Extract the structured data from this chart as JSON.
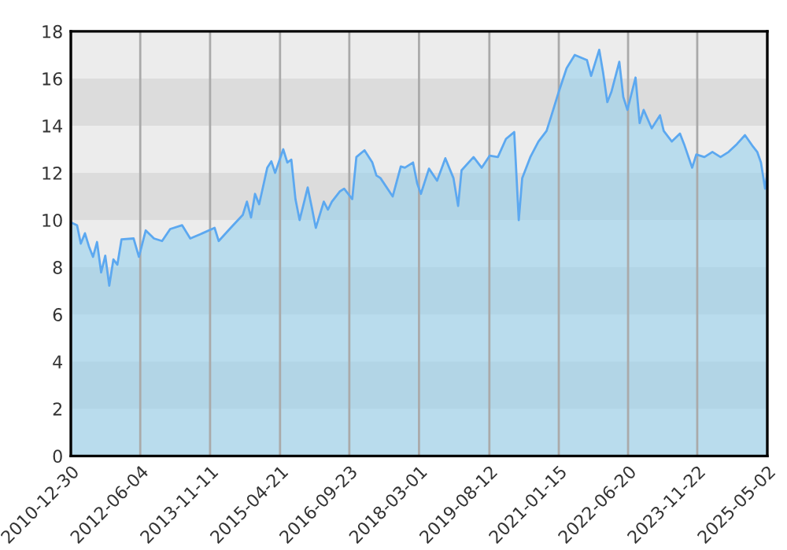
{
  "chart_data": {
    "type": "area",
    "x": [
      "2010-12-30",
      "2011-02-15",
      "2011-03-15",
      "2011-04-15",
      "2011-05-15",
      "2011-06-15",
      "2011-07-15",
      "2011-08-15",
      "2011-09-15",
      "2011-10-15",
      "2011-11-15",
      "2011-12-15",
      "2012-01-15",
      "2012-04-15",
      "2012-05-25",
      "2012-07-15",
      "2012-09-15",
      "2012-11-15",
      "2013-01-15",
      "2013-04-15",
      "2013-06-15",
      "2013-09-15",
      "2013-12-15",
      "2014-01-15",
      "2014-04-15",
      "2014-07-15",
      "2014-08-15",
      "2014-09-15",
      "2014-10-15",
      "2014-11-15",
      "2015-01-15",
      "2015-02-15",
      "2015-03-15",
      "2015-05-15",
      "2015-06-15",
      "2015-07-15",
      "2015-08-15",
      "2015-09-15",
      "2015-10-15",
      "2015-11-15",
      "2015-12-15",
      "2016-01-15",
      "2016-03-15",
      "2016-04-15",
      "2016-05-15",
      "2016-07-15",
      "2016-08-15",
      "2016-10-15",
      "2016-11-15",
      "2017-01-15",
      "2017-03-15",
      "2017-04-15",
      "2017-05-15",
      "2017-08-15",
      "2017-10-15",
      "2017-11-15",
      "2018-01-15",
      "2018-02-15",
      "2018-03-15",
      "2018-05-15",
      "2018-07-15",
      "2018-09-15",
      "2018-11-15",
      "2018-12-20",
      "2019-01-15",
      "2019-04-15",
      "2019-06-15",
      "2019-08-15",
      "2019-10-15",
      "2019-12-15",
      "2020-02-15",
      "2020-03-20",
      "2020-04-15",
      "2020-06-15",
      "2020-08-15",
      "2020-10-15",
      "2020-11-15",
      "2021-01-15",
      "2021-03-15",
      "2021-05-15",
      "2021-08-15",
      "2021-09-15",
      "2021-11-15",
      "2021-12-15",
      "2022-01-15",
      "2022-02-15",
      "2022-04-15",
      "2022-05-15",
      "2022-06-15",
      "2022-08-15",
      "2022-09-15",
      "2022-10-15",
      "2022-12-15",
      "2023-02-15",
      "2023-03-15",
      "2023-05-15",
      "2023-07-15",
      "2023-08-15",
      "2023-10-15",
      "2023-11-15",
      "2024-01-15",
      "2024-03-15",
      "2024-05-15",
      "2024-07-15",
      "2024-09-15",
      "2024-11-15",
      "2025-01-15",
      "2025-02-15",
      "2025-03-15",
      "2025-04-15",
      "2025-05-02"
    ],
    "series": [
      {
        "color": "#5ca8f0",
        "values": [
          9.9,
          9.78,
          9.0,
          9.44,
          8.89,
          8.44,
          9.07,
          7.78,
          8.49,
          7.22,
          8.33,
          8.11,
          9.18,
          9.22,
          8.44,
          9.56,
          9.22,
          9.11,
          9.62,
          9.78,
          9.22,
          9.44,
          9.67,
          9.11,
          9.67,
          10.22,
          10.78,
          10.11,
          11.11,
          10.67,
          12.22,
          12.49,
          12.0,
          13.0,
          12.44,
          12.56,
          10.89,
          10.0,
          10.67,
          11.38,
          10.56,
          9.67,
          10.78,
          10.44,
          10.78,
          11.22,
          11.33,
          10.89,
          12.67,
          12.96,
          12.44,
          11.89,
          11.78,
          11.0,
          12.27,
          12.22,
          12.44,
          11.56,
          11.11,
          12.18,
          11.67,
          12.62,
          11.78,
          10.6,
          12.11,
          12.67,
          12.22,
          12.73,
          12.67,
          13.44,
          13.73,
          10.0,
          11.78,
          12.67,
          13.33,
          13.78,
          14.33,
          15.44,
          16.44,
          17.0,
          16.78,
          16.11,
          17.22,
          16.22,
          15.0,
          15.44,
          16.71,
          15.22,
          14.67,
          16.04,
          14.11,
          14.67,
          13.89,
          14.44,
          13.78,
          13.33,
          13.67,
          13.22,
          12.22,
          12.78,
          12.67,
          12.89,
          12.67,
          12.89,
          13.22,
          13.6,
          13.11,
          12.89,
          12.44,
          11.33,
          12.0
        ]
      }
    ],
    "xlim": [
      "2010-12-30",
      "2025-05-02"
    ],
    "xticks": [
      "2010-12-30",
      "2012-06-04",
      "2013-11-11",
      "2015-04-21",
      "2016-09-23",
      "2018-03-01",
      "2019-08-12",
      "2021-01-15",
      "2022-06-20",
      "2023-11-22",
      "2025-05-02"
    ],
    "ylim": [
      0,
      18
    ],
    "yticks": [
      0,
      2,
      4,
      6,
      8,
      10,
      12,
      14,
      16,
      18
    ],
    "grid": "x",
    "bands": [
      {
        "axis": "y",
        "from": 2,
        "to": 4,
        "color": "#dcdcdc"
      },
      {
        "axis": "y",
        "from": 6,
        "to": 8,
        "color": "#dcdcdc"
      },
      {
        "axis": "y",
        "from": 10,
        "to": 12,
        "color": "#dcdcdc"
      },
      {
        "axis": "y",
        "from": 14,
        "to": 16,
        "color": "#dcdcdc"
      }
    ]
  }
}
